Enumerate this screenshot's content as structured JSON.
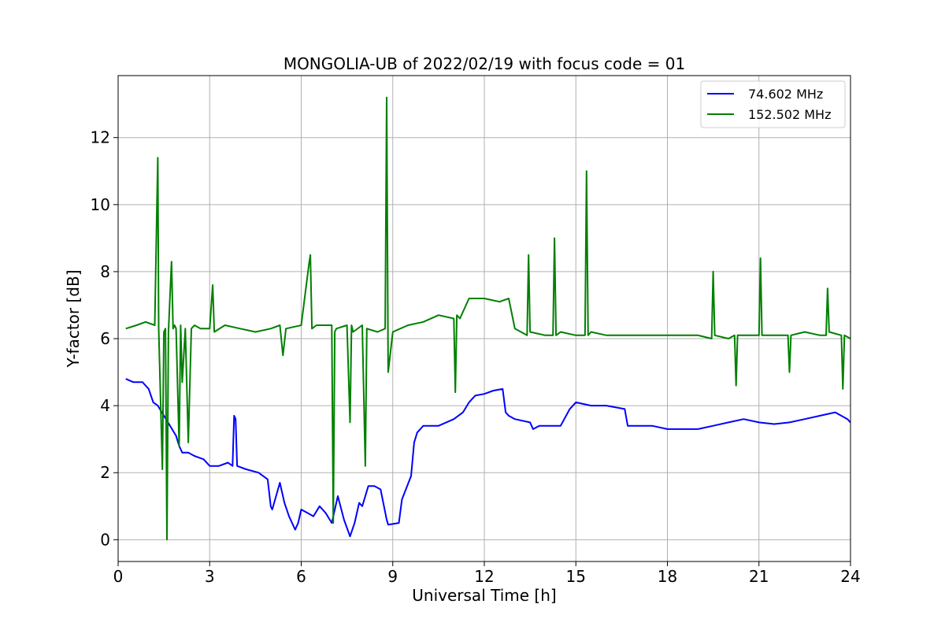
{
  "chart_data": {
    "type": "line",
    "title": "MONGOLIA-UB of 2022/02/19 with focus code = 01",
    "xlabel": "Universal Time [h]",
    "ylabel": "Y-factor [dB]",
    "xlim": [
      0,
      24
    ],
    "ylim": [
      -0.65,
      13.85
    ],
    "xticks": [
      0,
      3,
      6,
      9,
      12,
      15,
      18,
      21,
      24
    ],
    "xtick_labels": [
      "0",
      "3",
      "6",
      "9",
      "12",
      "15",
      "18",
      "21",
      "24"
    ],
    "yticks": [
      0,
      2,
      4,
      6,
      8,
      10,
      12
    ],
    "ytick_labels": [
      "0",
      "2",
      "4",
      "6",
      "8",
      "10",
      "12"
    ],
    "grid": true,
    "legend_position": "top-right",
    "series": [
      {
        "name": "74.602 MHz",
        "color": "#0000ff",
        "x": [
          0.25,
          0.5,
          0.8,
          1.0,
          1.15,
          1.3,
          1.5,
          1.7,
          1.9,
          2.0,
          2.1,
          2.3,
          2.5,
          2.8,
          3.0,
          3.3,
          3.6,
          3.75,
          3.8,
          3.85,
          3.9,
          4.2,
          4.6,
          4.9,
          5.0,
          5.05,
          5.3,
          5.45,
          5.6,
          5.8,
          5.9,
          6.0,
          6.2,
          6.4,
          6.6,
          6.8,
          7.0,
          7.2,
          7.4,
          7.6,
          7.75,
          7.9,
          8.0,
          8.2,
          8.4,
          8.6,
          8.8,
          8.85,
          9.2,
          9.3,
          9.6,
          9.7,
          9.8,
          10.0,
          10.5,
          11.0,
          11.3,
          11.5,
          11.7,
          12.0,
          12.3,
          12.6,
          12.7,
          12.8,
          13.0,
          13.5,
          13.6,
          13.8,
          14.0,
          14.5,
          14.8,
          15.0,
          15.5,
          16.0,
          16.6,
          16.7,
          17.5,
          18.0,
          18.5,
          19.0,
          19.5,
          20.0,
          20.5,
          21.0,
          21.5,
          22.0,
          22.5,
          23.0,
          23.5,
          23.9,
          24.0
        ],
        "values": [
          4.8,
          4.7,
          4.7,
          4.5,
          4.1,
          4.0,
          3.7,
          3.4,
          3.1,
          2.8,
          2.6,
          2.6,
          2.5,
          2.4,
          2.2,
          2.2,
          2.3,
          2.2,
          3.7,
          3.6,
          2.2,
          2.1,
          2.0,
          1.8,
          1.0,
          0.9,
          1.7,
          1.1,
          0.7,
          0.3,
          0.5,
          0.9,
          0.8,
          0.7,
          1.0,
          0.8,
          0.5,
          1.3,
          0.6,
          0.1,
          0.5,
          1.1,
          1.0,
          1.6,
          1.6,
          1.5,
          0.6,
          0.45,
          0.5,
          1.2,
          1.9,
          2.9,
          3.2,
          3.4,
          3.4,
          3.6,
          3.8,
          4.1,
          4.3,
          4.35,
          4.45,
          4.5,
          3.8,
          3.7,
          3.6,
          3.5,
          3.3,
          3.4,
          3.4,
          3.4,
          3.9,
          4.1,
          4.0,
          4.0,
          3.9,
          3.4,
          3.4,
          3.3,
          3.3,
          3.3,
          3.4,
          3.5,
          3.6,
          3.5,
          3.45,
          3.5,
          3.6,
          3.7,
          3.8,
          3.6,
          3.5
        ]
      },
      {
        "name": "152.502 MHz",
        "color": "#008000",
        "x": [
          0.25,
          0.6,
          0.9,
          1.2,
          1.28,
          1.3,
          1.33,
          1.45,
          1.5,
          1.55,
          1.6,
          1.65,
          1.75,
          1.8,
          1.85,
          1.9,
          2.0,
          2.05,
          2.1,
          2.2,
          2.3,
          2.4,
          2.5,
          2.7,
          3.0,
          3.1,
          3.15,
          3.5,
          4.0,
          4.5,
          5.0,
          5.3,
          5.4,
          5.5,
          6.0,
          6.25,
          6.3,
          6.35,
          6.5,
          7.0,
          7.05,
          7.1,
          7.15,
          7.5,
          7.6,
          7.65,
          7.7,
          8.0,
          8.1,
          8.15,
          8.5,
          8.75,
          8.8,
          8.85,
          9.0,
          9.5,
          10.0,
          10.5,
          11.0,
          11.05,
          11.1,
          11.2,
          11.5,
          12.0,
          12.5,
          12.8,
          13.0,
          13.4,
          13.45,
          13.5,
          14.0,
          14.25,
          14.3,
          14.35,
          14.5,
          15.0,
          15.3,
          15.35,
          15.4,
          15.5,
          16.0,
          16.5,
          17.0,
          17.5,
          18.0,
          18.5,
          19.0,
          19.45,
          19.5,
          19.55,
          20.0,
          20.2,
          20.25,
          20.3,
          20.5,
          21.0,
          21.05,
          21.1,
          21.5,
          21.95,
          22.0,
          22.05,
          22.5,
          23.0,
          23.2,
          23.25,
          23.3,
          23.7,
          23.75,
          23.8,
          24.0
        ],
        "values": [
          6.3,
          6.4,
          6.5,
          6.4,
          10.4,
          11.4,
          6.3,
          2.1,
          6.2,
          6.3,
          0.0,
          6.2,
          8.3,
          6.3,
          6.4,
          6.3,
          2.8,
          6.4,
          4.7,
          6.3,
          2.9,
          6.3,
          6.4,
          6.3,
          6.3,
          7.6,
          6.2,
          6.4,
          6.3,
          6.2,
          6.3,
          6.4,
          5.5,
          6.3,
          6.4,
          8.2,
          8.5,
          6.3,
          6.4,
          6.4,
          0.5,
          6.2,
          6.3,
          6.4,
          3.5,
          6.4,
          6.2,
          6.4,
          2.2,
          6.3,
          6.2,
          6.3,
          13.2,
          5.0,
          6.2,
          6.4,
          6.5,
          6.7,
          6.6,
          4.4,
          6.7,
          6.6,
          7.2,
          7.2,
          7.1,
          7.2,
          6.3,
          6.1,
          8.5,
          6.2,
          6.1,
          6.1,
          9.0,
          6.1,
          6.2,
          6.1,
          6.1,
          11.0,
          6.1,
          6.2,
          6.1,
          6.1,
          6.1,
          6.1,
          6.1,
          6.1,
          6.1,
          6.0,
          8.0,
          6.1,
          6.0,
          6.1,
          4.6,
          6.1,
          6.1,
          6.1,
          8.4,
          6.1,
          6.1,
          6.1,
          5.0,
          6.1,
          6.2,
          6.1,
          6.1,
          7.5,
          6.2,
          6.1,
          4.5,
          6.1,
          6.0
        ]
      }
    ]
  }
}
